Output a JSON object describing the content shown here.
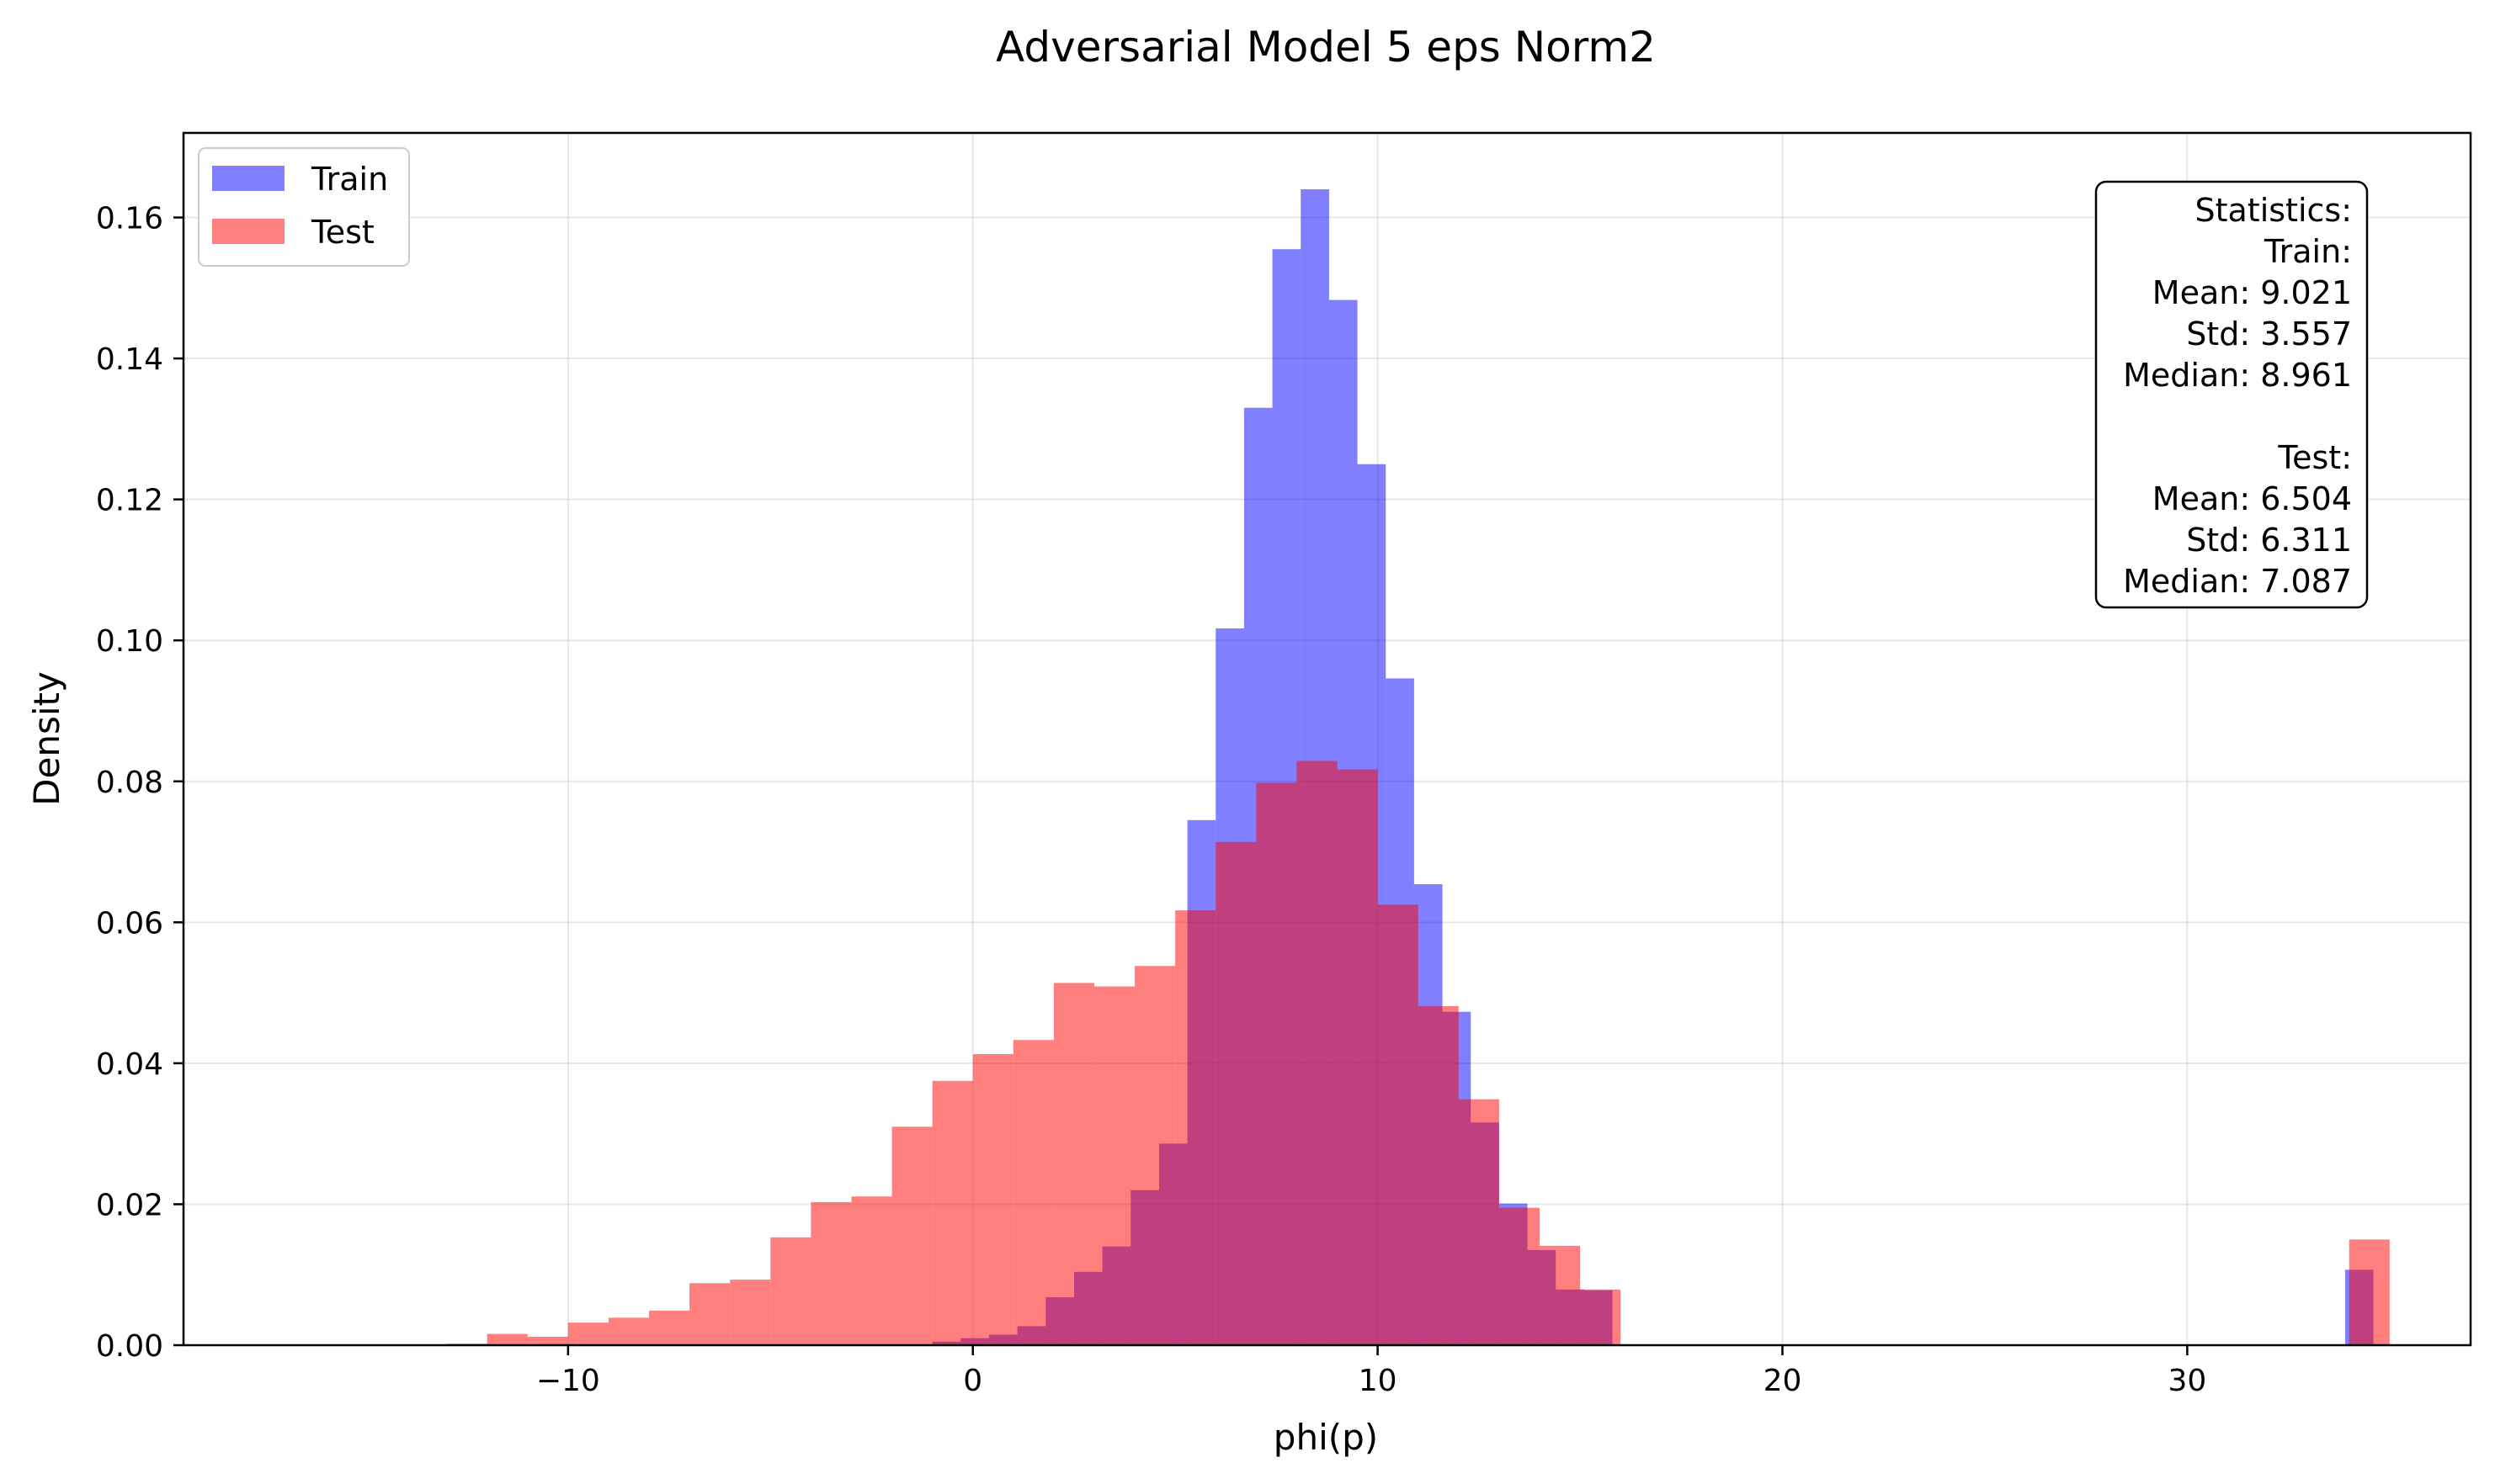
{
  "chart_data": {
    "type": "histogram",
    "title": "Adversarial Model 5 eps Norm2",
    "xlabel": "phi(p)",
    "ylabel": "Density",
    "xlim": [
      -19.5,
      37.0
    ],
    "ylim": [
      0,
      0.172
    ],
    "xticks": [
      -10,
      0,
      10,
      20,
      30
    ],
    "xtick_labels": [
      "−10",
      "0",
      "10",
      "20",
      "30"
    ],
    "yticks": [
      0.0,
      0.02,
      0.04,
      0.06,
      0.08,
      0.1,
      0.12,
      0.14,
      0.16
    ],
    "ytick_labels": [
      "0.00",
      "0.02",
      "0.04",
      "0.06",
      "0.08",
      "0.10",
      "0.12",
      "0.14",
      "0.16"
    ],
    "grid": true,
    "legend_position": "upper-left",
    "series": [
      {
        "name": "Train",
        "color": "#0000ff",
        "opacity": 0.5,
        "bins": [
          [
            -1.0,
            -0.3,
            0.0005
          ],
          [
            -0.3,
            0.4,
            0.001
          ],
          [
            0.4,
            1.1,
            0.0015
          ],
          [
            1.1,
            1.8,
            0.0027
          ],
          [
            1.8,
            2.5,
            0.0068
          ],
          [
            2.5,
            3.2,
            0.0104
          ],
          [
            3.2,
            3.9,
            0.014
          ],
          [
            3.9,
            4.6,
            0.022
          ],
          [
            4.6,
            5.3,
            0.0286
          ],
          [
            5.3,
            6.0,
            0.0745
          ],
          [
            6.0,
            6.7,
            0.1017
          ],
          [
            6.7,
            7.4,
            0.133
          ],
          [
            7.4,
            8.1,
            0.1555
          ],
          [
            8.1,
            8.8,
            0.164
          ],
          [
            8.8,
            9.5,
            0.1483
          ],
          [
            9.5,
            10.2,
            0.125
          ],
          [
            10.2,
            10.9,
            0.0946
          ],
          [
            10.9,
            11.6,
            0.0654
          ],
          [
            11.6,
            12.3,
            0.0473
          ],
          [
            12.3,
            13.0,
            0.0316
          ],
          [
            13.0,
            13.7,
            0.0201
          ],
          [
            13.7,
            14.4,
            0.0135
          ],
          [
            14.4,
            15.1,
            0.0079
          ],
          [
            15.1,
            15.8,
            0.0078
          ],
          [
            33.9,
            34.6,
            0.0107
          ]
        ]
      },
      {
        "name": "Test",
        "color": "#ff0000",
        "opacity": 0.5,
        "bins": [
          [
            -13.0,
            -12.0,
            0.0002
          ],
          [
            -12.0,
            -11.0,
            0.0016
          ],
          [
            -11.0,
            -10.0,
            0.0012
          ],
          [
            -10.0,
            -9.0,
            0.0032
          ],
          [
            -9.0,
            -8.0,
            0.0039
          ],
          [
            -8.0,
            -7.0,
            0.0049
          ],
          [
            -7.0,
            -6.0,
            0.0088
          ],
          [
            -6.0,
            -5.0,
            0.0093
          ],
          [
            -5.0,
            -4.0,
            0.0153
          ],
          [
            -4.0,
            -3.0,
            0.0203
          ],
          [
            -3.0,
            -2.0,
            0.0211
          ],
          [
            -2.0,
            -1.0,
            0.031
          ],
          [
            -1.0,
            0.0,
            0.0375
          ],
          [
            0.0,
            1.0,
            0.0413
          ],
          [
            1.0,
            2.0,
            0.0433
          ],
          [
            2.0,
            3.0,
            0.0514
          ],
          [
            3.0,
            4.0,
            0.0509
          ],
          [
            4.0,
            5.0,
            0.0538
          ],
          [
            5.0,
            6.0,
            0.0617
          ],
          [
            6.0,
            7.0,
            0.0714
          ],
          [
            7.0,
            8.0,
            0.0798
          ],
          [
            8.0,
            9.0,
            0.0829
          ],
          [
            9.0,
            10.0,
            0.0817
          ],
          [
            10.0,
            11.0,
            0.0625
          ],
          [
            11.0,
            12.0,
            0.0481
          ],
          [
            12.0,
            13.0,
            0.0349
          ],
          [
            13.0,
            14.0,
            0.0195
          ],
          [
            14.0,
            15.0,
            0.0141
          ],
          [
            15.0,
            16.0,
            0.0079
          ],
          [
            34.0,
            35.0,
            0.015
          ]
        ]
      }
    ],
    "statistics_box": {
      "position": "upper-right",
      "lines": [
        "Statistics:",
        "Train:",
        "Mean: 9.021",
        "Std: 3.557",
        "Median: 8.961",
        "",
        "Test:",
        "Mean: 6.504",
        "Std: 6.311",
        "Median: 7.087"
      ]
    }
  }
}
